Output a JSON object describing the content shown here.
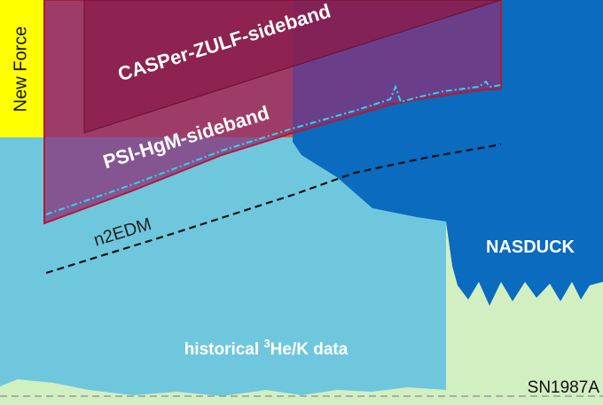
{
  "regions": {
    "new_force": "New Force",
    "casper": "CASPer-ZULF-sideband",
    "psi": "PSI-HgM-sideband",
    "n2edm": "n2EDM",
    "nasduck": "NASDUCK",
    "historical": {
      "prefix": "historical ",
      "superscript": "3",
      "suffix": "He/K data"
    },
    "sn1987a": "SN1987A"
  }
}
